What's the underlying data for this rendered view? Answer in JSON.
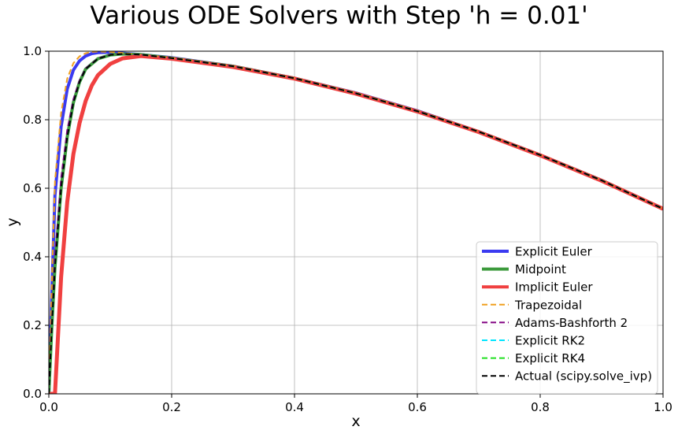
{
  "chart_data": {
    "type": "line",
    "title": "Various ODE Solvers with Step 'h = 0.01'",
    "xlabel": "x",
    "ylabel": "y",
    "xlim": [
      0.0,
      1.0
    ],
    "ylim": [
      0.0,
      1.0
    ],
    "xticks": [
      "0.0",
      "0.2",
      "0.4",
      "0.6",
      "0.8",
      "1.0"
    ],
    "yticks": [
      "0.0",
      "0.2",
      "0.4",
      "0.6",
      "0.8",
      "1.0"
    ],
    "grid": true,
    "legend_position": "lower-right",
    "series": [
      {
        "name": "Explicit Euler",
        "color": "#3a3af0",
        "style": "solid",
        "width": 4,
        "points": [
          [
            0,
            0
          ],
          [
            0.005,
            0.3
          ],
          [
            0.01,
            0.58
          ],
          [
            0.02,
            0.78
          ],
          [
            0.03,
            0.89
          ],
          [
            0.04,
            0.945
          ],
          [
            0.05,
            0.972
          ],
          [
            0.06,
            0.986
          ],
          [
            0.07,
            0.993
          ],
          [
            0.08,
            0.996
          ],
          [
            0.1,
            0.997
          ],
          [
            0.15,
            0.99
          ],
          [
            0.2,
            0.981
          ],
          [
            0.3,
            0.956
          ],
          [
            0.4,
            0.921
          ],
          [
            0.5,
            0.878
          ],
          [
            0.6,
            0.826
          ],
          [
            0.7,
            0.765
          ],
          [
            0.8,
            0.697
          ],
          [
            0.9,
            0.623
          ],
          [
            1.0,
            0.54
          ]
        ]
      },
      {
        "name": "Midpoint",
        "color": "#3c9a3c",
        "style": "solid",
        "width": 4,
        "points": [
          [
            0,
            0
          ],
          [
            0.005,
            0.2
          ],
          [
            0.01,
            0.37
          ],
          [
            0.02,
            0.6
          ],
          [
            0.03,
            0.75
          ],
          [
            0.04,
            0.85
          ],
          [
            0.05,
            0.91
          ],
          [
            0.06,
            0.948
          ],
          [
            0.08,
            0.978
          ],
          [
            0.1,
            0.989
          ],
          [
            0.12,
            0.992
          ],
          [
            0.15,
            0.99
          ],
          [
            0.2,
            0.98
          ],
          [
            0.3,
            0.956
          ],
          [
            0.4,
            0.921
          ],
          [
            0.5,
            0.877
          ],
          [
            0.6,
            0.825
          ],
          [
            0.7,
            0.765
          ],
          [
            0.8,
            0.697
          ],
          [
            0.9,
            0.623
          ],
          [
            1.0,
            0.54
          ]
        ]
      },
      {
        "name": "Implicit Euler",
        "color": "#f04040",
        "style": "solid",
        "width": 5,
        "points": [
          [
            0,
            0
          ],
          [
            0.01,
            0.0
          ],
          [
            0.02,
            0.34
          ],
          [
            0.03,
            0.56
          ],
          [
            0.04,
            0.7
          ],
          [
            0.05,
            0.79
          ],
          [
            0.06,
            0.855
          ],
          [
            0.07,
            0.9
          ],
          [
            0.08,
            0.93
          ],
          [
            0.1,
            0.963
          ],
          [
            0.12,
            0.979
          ],
          [
            0.15,
            0.986
          ],
          [
            0.2,
            0.978
          ],
          [
            0.3,
            0.954
          ],
          [
            0.4,
            0.92
          ],
          [
            0.5,
            0.876
          ],
          [
            0.6,
            0.824
          ],
          [
            0.7,
            0.764
          ],
          [
            0.8,
            0.696
          ],
          [
            0.9,
            0.622
          ],
          [
            1.0,
            0.54
          ]
        ]
      },
      {
        "name": "Trapezoidal",
        "color": "#f0a020",
        "style": "dashed",
        "width": 2,
        "points": [
          [
            0,
            0
          ],
          [
            0.005,
            0.33
          ],
          [
            0.01,
            0.62
          ],
          [
            0.02,
            0.82
          ],
          [
            0.03,
            0.92
          ],
          [
            0.04,
            0.965
          ],
          [
            0.05,
            0.985
          ],
          [
            0.06,
            0.994
          ],
          [
            0.07,
            0.998
          ],
          [
            0.08,
            0.999
          ],
          [
            0.1,
            0.998
          ],
          [
            0.15,
            0.99
          ],
          [
            0.2,
            0.981
          ],
          [
            0.3,
            0.956
          ],
          [
            0.4,
            0.921
          ],
          [
            0.5,
            0.878
          ],
          [
            0.6,
            0.826
          ],
          [
            0.7,
            0.765
          ],
          [
            0.8,
            0.697
          ],
          [
            0.9,
            0.623
          ],
          [
            1.0,
            0.54
          ]
        ]
      },
      {
        "name": "Adams-Bashforth 2",
        "color": "#800080",
        "style": "dashed",
        "width": 2,
        "points": [
          [
            0,
            0
          ],
          [
            0.005,
            0.22
          ],
          [
            0.01,
            0.4
          ],
          [
            0.02,
            0.63
          ],
          [
            0.03,
            0.77
          ],
          [
            0.04,
            0.86
          ],
          [
            0.05,
            0.915
          ],
          [
            0.06,
            0.95
          ],
          [
            0.08,
            0.979
          ],
          [
            0.1,
            0.99
          ],
          [
            0.12,
            0.992
          ],
          [
            0.15,
            0.99
          ],
          [
            0.2,
            0.98
          ],
          [
            0.3,
            0.956
          ],
          [
            0.4,
            0.921
          ],
          [
            0.5,
            0.877
          ],
          [
            0.6,
            0.825
          ],
          [
            0.7,
            0.765
          ],
          [
            0.8,
            0.697
          ],
          [
            0.9,
            0.623
          ],
          [
            1.0,
            0.54
          ]
        ]
      },
      {
        "name": "Explicit RK2",
        "color": "#00e5ff",
        "style": "dashed",
        "width": 2,
        "points": [
          [
            0,
            0
          ],
          [
            0.005,
            0.2
          ],
          [
            0.01,
            0.37
          ],
          [
            0.02,
            0.6
          ],
          [
            0.03,
            0.75
          ],
          [
            0.04,
            0.85
          ],
          [
            0.05,
            0.91
          ],
          [
            0.06,
            0.948
          ],
          [
            0.08,
            0.978
          ],
          [
            0.1,
            0.989
          ],
          [
            0.12,
            0.992
          ],
          [
            0.15,
            0.99
          ],
          [
            0.2,
            0.98
          ],
          [
            0.3,
            0.956
          ],
          [
            0.4,
            0.921
          ],
          [
            0.5,
            0.877
          ],
          [
            0.6,
            0.825
          ],
          [
            0.7,
            0.765
          ],
          [
            0.8,
            0.697
          ],
          [
            0.9,
            0.623
          ],
          [
            1.0,
            0.54
          ]
        ]
      },
      {
        "name": "Explicit RK4",
        "color": "#20e020",
        "style": "dashed",
        "width": 2,
        "points": [
          [
            0,
            0
          ],
          [
            0.005,
            0.2
          ],
          [
            0.01,
            0.37
          ],
          [
            0.02,
            0.6
          ],
          [
            0.03,
            0.75
          ],
          [
            0.04,
            0.85
          ],
          [
            0.05,
            0.91
          ],
          [
            0.06,
            0.948
          ],
          [
            0.08,
            0.978
          ],
          [
            0.1,
            0.989
          ],
          [
            0.12,
            0.992
          ],
          [
            0.15,
            0.99
          ],
          [
            0.2,
            0.98
          ],
          [
            0.3,
            0.956
          ],
          [
            0.4,
            0.921
          ],
          [
            0.5,
            0.877
          ],
          [
            0.6,
            0.825
          ],
          [
            0.7,
            0.765
          ],
          [
            0.8,
            0.697
          ],
          [
            0.9,
            0.623
          ],
          [
            1.0,
            0.54
          ]
        ]
      },
      {
        "name": "Actual (scipy.solve_ivp)",
        "color": "#000000",
        "style": "dashed",
        "width": 2,
        "points": [
          [
            0,
            0
          ],
          [
            0.005,
            0.2
          ],
          [
            0.01,
            0.37
          ],
          [
            0.02,
            0.6
          ],
          [
            0.03,
            0.75
          ],
          [
            0.04,
            0.85
          ],
          [
            0.05,
            0.91
          ],
          [
            0.06,
            0.948
          ],
          [
            0.08,
            0.978
          ],
          [
            0.1,
            0.989
          ],
          [
            0.12,
            0.992
          ],
          [
            0.15,
            0.99
          ],
          [
            0.2,
            0.98
          ],
          [
            0.3,
            0.956
          ],
          [
            0.4,
            0.921
          ],
          [
            0.5,
            0.877
          ],
          [
            0.6,
            0.825
          ],
          [
            0.7,
            0.765
          ],
          [
            0.8,
            0.697
          ],
          [
            0.9,
            0.623
          ],
          [
            1.0,
            0.54
          ]
        ]
      }
    ]
  }
}
